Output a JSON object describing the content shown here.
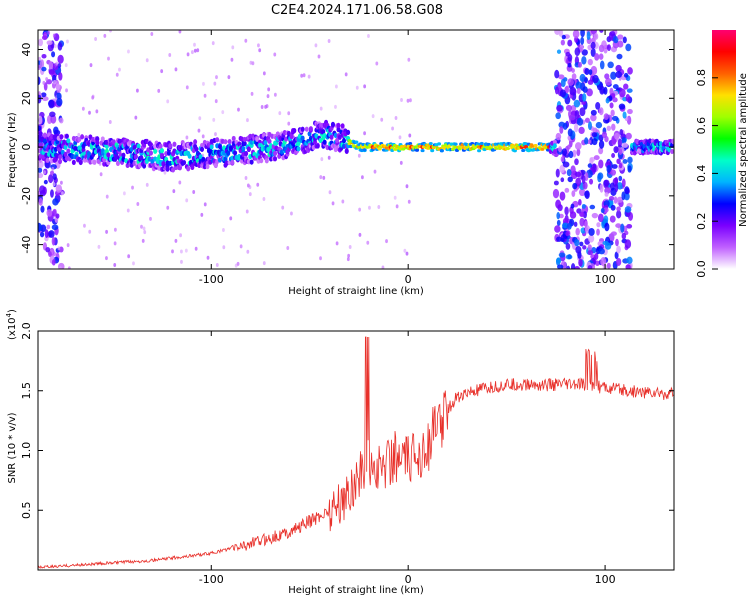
{
  "figure": {
    "title": "C2E4.2024.171.06.58.G08"
  },
  "chart_data": [
    {
      "type": "heatmap",
      "xlabel": "Height of straight line (km)",
      "ylabel": "Frequency (Hz)",
      "xlim": [
        -188,
        135
      ],
      "ylim": [
        -50,
        48
      ],
      "xticks": [
        -100,
        0,
        100
      ],
      "yticks": [
        -40,
        -20,
        0,
        20,
        40
      ],
      "colorbar": {
        "label": "Normalized spectral amplitude",
        "range": [
          0,
          1
        ],
        "ticks": [
          "0.0",
          "0.2",
          "0.4",
          "0.6",
          "0.8"
        ],
        "colors": [
          "#ffffff",
          "#c060ff",
          "#7a00ff",
          "#0000ff",
          "#00b4ff",
          "#00ffc8",
          "#00ff00",
          "#a0ff00",
          "#ffe000",
          "#ff6000",
          "#ff0000",
          "#ff0070"
        ]
      },
      "ridge": [
        {
          "x": -185,
          "f": 0
        },
        {
          "x": -150,
          "f": -2
        },
        {
          "x": -120,
          "f": -4
        },
        {
          "x": -90,
          "f": -2
        },
        {
          "x": -60,
          "f": 1
        },
        {
          "x": -45,
          "f": 5
        },
        {
          "x": -35,
          "f": 4
        },
        {
          "x": -25,
          "f": 0
        },
        {
          "x": 0,
          "f": 0
        },
        {
          "x": 72,
          "f": 0
        },
        {
          "x": 115,
          "f": 0
        },
        {
          "x": 135,
          "f": 0
        }
      ],
      "broadband_regions": [
        {
          "x0": 75,
          "x1": 113,
          "amplitude": 0.3
        },
        {
          "x0": -188,
          "x1": -176,
          "amplitude": 0.25
        }
      ]
    },
    {
      "type": "line",
      "xlabel": "Height of straight line (km)",
      "ylabel": "SNR (10 * v/v)",
      "yscale_label": "(x10",
      "yscale_exponent": "4",
      "yscale_close": ")",
      "xlim": [
        -188,
        135
      ],
      "ylim": [
        0,
        2.0
      ],
      "xticks": [
        -100,
        0,
        100
      ],
      "yticks": [
        0.5,
        1.0,
        1.5,
        2.0
      ],
      "ytick_labels": [
        "0.5",
        "1.0",
        "1.5",
        "2.0"
      ],
      "color": "#e8302a",
      "series": {
        "x": [
          -188,
          -160,
          -130,
          -100,
          -80,
          -60,
          -45,
          -35,
          -28,
          -22,
          -15,
          -8,
          0,
          10,
          18,
          25,
          35,
          50,
          70,
          90,
          110,
          135
        ],
        "values": [
          0.02,
          0.05,
          0.08,
          0.14,
          0.22,
          0.32,
          0.45,
          0.55,
          0.7,
          0.9,
          0.85,
          0.95,
          0.9,
          1.05,
          1.3,
          1.45,
          1.5,
          1.55,
          1.55,
          1.55,
          1.5,
          1.47
        ]
      }
    }
  ]
}
